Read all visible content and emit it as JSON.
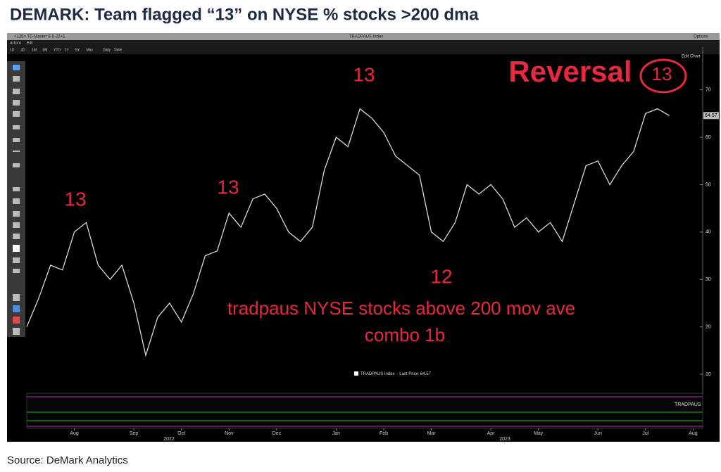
{
  "chart_data": {
    "type": "line",
    "title": "DEMARK: Team flagged “13” on NYSE % stocks >200 dma",
    "source": "Source: DeMark Analytics",
    "categories": [
      null,
      null,
      null,
      null,
      "Aug",
      null,
      null,
      null,
      null,
      "Sep",
      null,
      null,
      null,
      "Oct",
      null,
      null,
      null,
      "Nov",
      null,
      null,
      null,
      "Dec",
      null,
      null,
      null,
      null,
      "Jan",
      null,
      null,
      null,
      "Feb",
      null,
      null,
      null,
      "Mar",
      null,
      null,
      null,
      null,
      "Apr",
      null,
      null,
      null,
      "May",
      null,
      null,
      null,
      null,
      "Jun",
      null,
      null,
      null,
      "Jul",
      null,
      null,
      null,
      "Aug"
    ],
    "x_years": [
      "2022",
      "2023"
    ],
    "series": [
      {
        "name": "TRADPAUS Index",
        "color": "#d9d9d9",
        "values": [
          20,
          26,
          33,
          32,
          40,
          42,
          33,
          30,
          33,
          25,
          14,
          22,
          25,
          21,
          27,
          35,
          36,
          44,
          41,
          47,
          48,
          45,
          40,
          38,
          41,
          53,
          60,
          58,
          66,
          64,
          61,
          56,
          54,
          52,
          40,
          38,
          42,
          50,
          48,
          50,
          47,
          41,
          43,
          40,
          42,
          38,
          46,
          54,
          55,
          50,
          54,
          57,
          65,
          66,
          64.57,
          null,
          null
        ]
      }
    ],
    "legend_label": "- Last Price",
    "ylim": [
      6,
      79
    ],
    "yticks": [
      10,
      20,
      30,
      40,
      50,
      60,
      70
    ],
    "grid": false,
    "annotations": [
      "13",
      "13",
      "13",
      "12",
      "Reversal",
      "13",
      "tradpaus NYSE stocks above 200 mov ave",
      "combo 1b"
    ]
  },
  "ui": {
    "window_title": "<125> TD Master 9-5-22+1",
    "window_center": "TRADPAUS Index",
    "options": "Options",
    "actions": "Actions",
    "edit": "Edit",
    "ranges": [
      "1D",
      "3D",
      "1M",
      "6M",
      "YTD",
      "1Y",
      "5Y",
      "Max",
      "Daily",
      "Table"
    ],
    "edit_chart": "Edit Chart",
    "panel_label": "TRADPAUS"
  }
}
